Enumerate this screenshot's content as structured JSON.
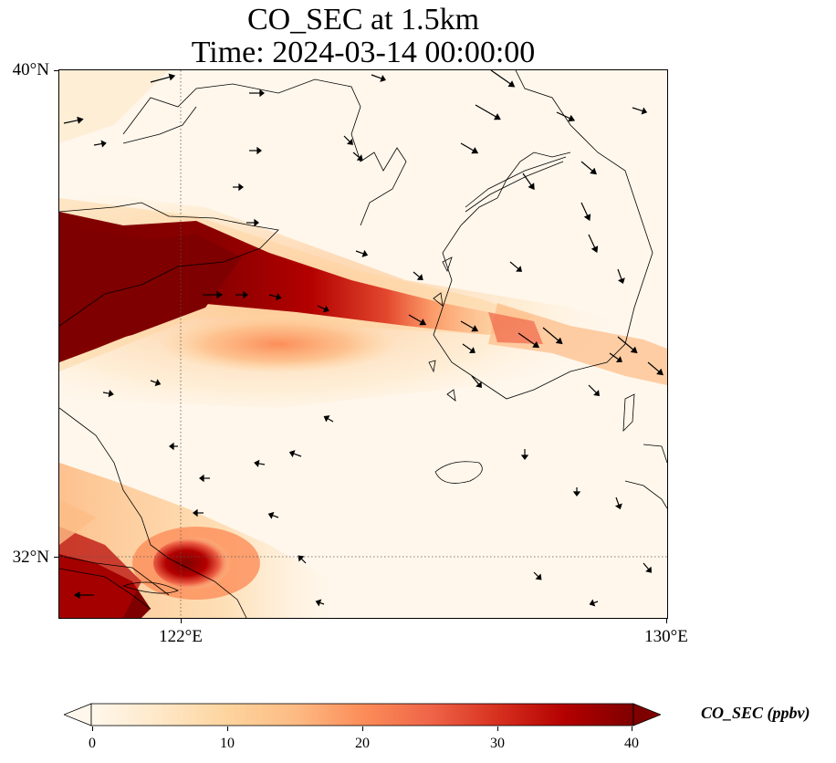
{
  "title": {
    "line1": "CO_SEC at 1.5km",
    "line2": "Time: 2024-03-14 00:00:00"
  },
  "axes": {
    "lat_labels": [
      "40°N",
      "32°N"
    ],
    "lon_labels": [
      "122°E",
      "130°E"
    ],
    "lon_range_deg": [
      120,
      130
    ],
    "lat_range_deg": [
      31,
      40
    ],
    "gridlines": {
      "lon_deg": [
        122
      ],
      "lat_deg": [
        32
      ],
      "style": "dotted"
    }
  },
  "colorbar": {
    "label": "CO_SEC (ppbv)",
    "ticks": [
      "0",
      "10",
      "20",
      "30",
      "40"
    ],
    "range": [
      0,
      40
    ],
    "colormap": "OrRd",
    "extend": "both"
  },
  "colors": {
    "cmap_stops": [
      "#fff7ec",
      "#fee8c8",
      "#fdd49e",
      "#fdbb84",
      "#fc8d59",
      "#ef6548",
      "#d7301f",
      "#b30000",
      "#7f0000"
    ]
  },
  "field_features": [
    {
      "name": "northern plume",
      "peak_ppbv": 40,
      "direction": "west to east, centered near 36.5°N"
    },
    {
      "name": "southern plume",
      "peak_ppbv": 40,
      "direction": "southwest corner near 31.5°N, 120-122°E"
    }
  ],
  "wind_vectors": "arrows showing wind direction, mostly westerly to northwesterly"
}
